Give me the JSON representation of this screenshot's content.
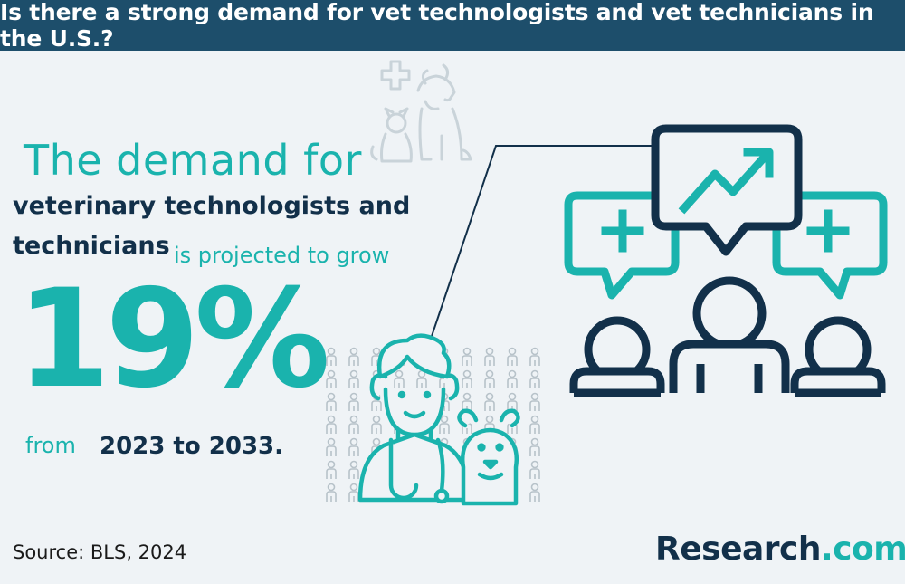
{
  "header": {
    "title": "Is there a strong demand for vet technologists and vet technicians in the U.S.?"
  },
  "content": {
    "line1": "The demand for",
    "line2": "veterinary technologists and",
    "line3": "technicians",
    "line3_suffix": "is projected to grow",
    "percent": "19%",
    "from_label": "from",
    "years": "2023 to 2033."
  },
  "footer": {
    "source": "Source: BLS, 2024",
    "logo_main": "Research",
    "logo_suffix": ".com"
  },
  "colors": {
    "header_bg": "#1d4e6b",
    "teal": "#1ab3ad",
    "navy": "#12304a",
    "background": "#eff3f6"
  },
  "icons": [
    "pets-plus-icon",
    "people-crowd-icon",
    "vet-doctor-icon",
    "dog-icon",
    "growth-chart-bubble-icon",
    "plus-bubble-icon",
    "person-icon"
  ]
}
